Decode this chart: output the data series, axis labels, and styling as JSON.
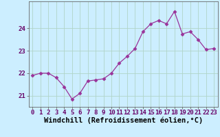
{
  "x": [
    0,
    1,
    2,
    3,
    4,
    5,
    6,
    7,
    8,
    9,
    10,
    11,
    12,
    13,
    14,
    15,
    16,
    17,
    18,
    19,
    20,
    21,
    22,
    23
  ],
  "y": [
    21.9,
    22.0,
    22.0,
    21.8,
    21.4,
    20.85,
    21.1,
    21.65,
    21.7,
    21.75,
    22.0,
    22.45,
    22.75,
    23.1,
    23.85,
    24.2,
    24.35,
    24.2,
    24.75,
    23.75,
    23.85,
    23.5,
    23.05,
    23.1
  ],
  "line_color": "#993399",
  "bg_color": "#cceeff",
  "grid_color": "#aaddcc",
  "xlabel": "Windchill (Refroidissement éolien,°C)",
  "xlabel_fontsize": 7.5,
  "tick_fontsize": 6.5,
  "ylabel_ticks": [
    21,
    22,
    23,
    24
  ],
  "ylim": [
    20.5,
    25.2
  ],
  "xlim": [
    -0.5,
    23.5
  ],
  "marker": "D",
  "marker_size": 2.5,
  "line_width": 0.9
}
